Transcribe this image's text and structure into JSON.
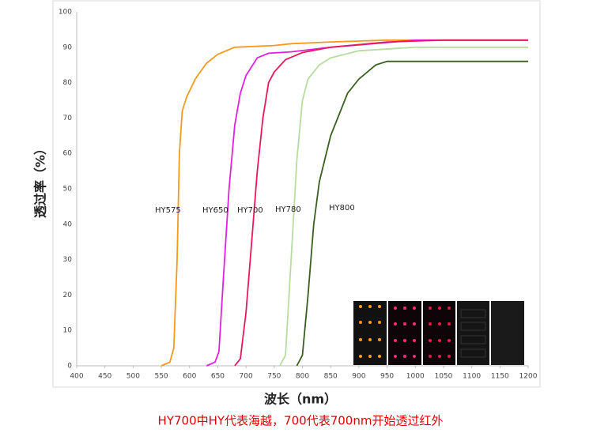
{
  "chart_data": {
    "type": "line",
    "y_label": "透过率（%）",
    "x_label": "波长（nm）",
    "caption": "HY700中HY代表海越，700代表700nm开始透过红外",
    "xlim": [
      400,
      1200
    ],
    "xticks": [
      400,
      450,
      500,
      550,
      600,
      650,
      700,
      750,
      800,
      850,
      900,
      950,
      1000,
      1050,
      1100,
      1150,
      1200
    ],
    "ylim": [
      0,
      100
    ],
    "yticks": [
      0,
      10,
      20,
      30,
      40,
      50,
      60,
      70,
      80,
      90,
      100
    ],
    "grid": false,
    "series": [
      {
        "name": "HY575",
        "color": "#f39a1e",
        "x": [
          550,
          565,
          572,
          578,
          582,
          587,
          595,
          610,
          630,
          650,
          680,
          750,
          780,
          850,
          950,
          1200
        ],
        "values": [
          0,
          1,
          5,
          30,
          60,
          72,
          76,
          81,
          85.5,
          88,
          90,
          90.5,
          91,
          91.5,
          92,
          92
        ]
      },
      {
        "name": "HY650",
        "color": "#e020e0",
        "x": [
          630,
          645,
          652,
          660,
          670,
          680,
          690,
          700,
          720,
          740,
          780,
          850,
          1000,
          1200
        ],
        "values": [
          0,
          1,
          4,
          25,
          50,
          68,
          77,
          82,
          87,
          88.3,
          88.7,
          90,
          92,
          92
        ]
      },
      {
        "name": "HY700",
        "color": "#e8195a",
        "x": [
          680,
          690,
          700,
          710,
          720,
          730,
          740,
          750,
          770,
          800,
          850,
          950,
          1050,
          1200
        ],
        "values": [
          0,
          2,
          15,
          35,
          55,
          70,
          80,
          83,
          86.5,
          88.5,
          90,
          91.5,
          92,
          92
        ]
      },
      {
        "name": "HY780",
        "color": "#b8dca0",
        "x": [
          760,
          770,
          780,
          790,
          800,
          810,
          830,
          850,
          900,
          1000,
          1200
        ],
        "values": [
          0,
          3,
          30,
          58,
          75,
          81,
          85,
          87,
          89,
          90,
          90
        ]
      },
      {
        "name": "HY800",
        "color": "#3a5e20",
        "x": [
          790,
          800,
          810,
          820,
          830,
          850,
          880,
          900,
          930,
          950,
          1000,
          1200
        ],
        "values": [
          0,
          3,
          20,
          40,
          52,
          65,
          77,
          81,
          85,
          86,
          86,
          86
        ]
      }
    ]
  }
}
